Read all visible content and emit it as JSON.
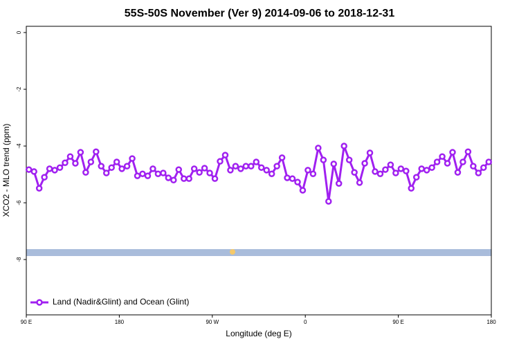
{
  "chart_data": {
    "type": "line",
    "title": "55S-50S November (Ver 9)   2014-09-06 to 2018-12-31",
    "x_label": "Longitude (deg E)",
    "y_label": "XCO2 - MLO trend (ppm)",
    "xlim": [
      90,
      540
    ],
    "xticks": [
      {
        "value": 90,
        "label": "90 E"
      },
      180,
      {
        "value": 270,
        "label": "90 W"
      },
      {
        "value": 360,
        "label": "0"
      },
      {
        "value": 450,
        "label": "90 E"
      },
      {
        "value": 540,
        "label": "180"
      }
    ],
    "ylim": [
      -9.95,
      0.22
    ],
    "yticks": [
      0,
      -2,
      -4,
      -6,
      -8
    ],
    "legend": "bottom-left",
    "x": [
      92.5,
      97.5,
      102.5,
      107.5,
      112.5,
      117.5,
      122.5,
      127.5,
      132.5,
      137.5,
      142.5,
      147.5,
      152.5,
      157.5,
      162.5,
      167.5,
      172.5,
      177.5,
      182.5,
      187.5,
      192.5,
      197.5,
      202.5,
      207.5,
      212.5,
      217.5,
      222.5,
      227.5,
      232.5,
      237.5,
      242.5,
      247.5,
      252.5,
      257.5,
      262.5,
      267.5,
      272.5,
      277.5,
      282.5,
      287.5,
      292.5,
      297.5,
      302.5,
      307.5,
      312.5,
      317.5,
      322.5,
      327.5,
      332.5,
      337.5,
      342.5,
      347.5,
      352.5,
      357.5,
      362.5,
      367.5,
      372.5,
      377.5,
      382.5,
      387.5,
      392.5,
      397.5,
      402.5,
      407.5,
      412.5,
      417.5,
      422.5,
      427.5,
      432.5,
      437.5,
      442.5,
      447.5,
      452.5,
      457.5,
      462.5,
      467.5,
      472.5,
      477.5,
      482.5,
      487.5,
      492.5,
      497.5,
      502.5,
      507.5,
      512.5,
      517.5,
      522.5,
      527.5,
      532.5,
      537.5
    ],
    "series": [
      {
        "name": "Land (Nadir&Glint) and Ocean (Glint)",
        "color": "#a020f0",
        "values": [
          -4.83,
          -4.9,
          -5.49,
          -5.1,
          -4.8,
          -4.85,
          -4.76,
          -4.59,
          -4.37,
          -4.61,
          -4.22,
          -4.93,
          -4.56,
          -4.2,
          -4.71,
          -4.95,
          -4.76,
          -4.56,
          -4.8,
          -4.71,
          -4.44,
          -5.05,
          -4.98,
          -5.05,
          -4.8,
          -4.98,
          -4.95,
          -5.12,
          -5.2,
          -4.83,
          -5.15,
          -5.15,
          -4.8,
          -4.93,
          -4.78,
          -4.95,
          -5.15,
          -4.54,
          -4.32,
          -4.85,
          -4.71,
          -4.8,
          -4.71,
          -4.71,
          -4.56,
          -4.76,
          -4.85,
          -4.98,
          -4.71,
          -4.41,
          -5.12,
          -5.15,
          -5.27,
          -5.56,
          -4.85,
          -4.98,
          -4.07,
          -4.49,
          -5.95,
          -4.63,
          -5.32,
          -4.0,
          -4.49,
          -4.93,
          -5.29,
          -4.61,
          -4.24,
          -4.9,
          -4.98,
          -4.83,
          -4.66,
          -4.95,
          -4.8,
          -4.88,
          -5.49,
          -5.1,
          -4.8,
          -4.85,
          -4.76,
          -4.56,
          -4.37,
          -4.61,
          -4.22,
          -4.93,
          -4.56,
          -4.2,
          -4.71,
          -4.95,
          -4.76,
          -4.56
        ]
      }
    ]
  }
}
